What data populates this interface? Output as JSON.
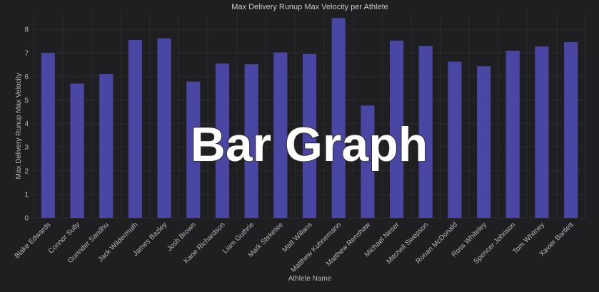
{
  "chart_data": {
    "type": "bar",
    "title": "Max Delivery Runup Max Velocity per Athlete",
    "xlabel": "Athlete Name",
    "ylabel": "Max Delivery Runup Max Velocity",
    "ylim": [
      0,
      8.7
    ],
    "yticks": [
      0,
      1,
      2,
      3,
      4,
      5,
      6,
      7,
      8
    ],
    "grid": true,
    "bar_color": "#4a46a3",
    "categories": [
      "Blake Edwards",
      "Connor Sully",
      "Gurinder Sandhu",
      "Jack Wildermuth",
      "James Bazley",
      "Josh Brown",
      "Kane Richardson",
      "Liam Guthrie",
      "Mark Steketee",
      "Matt Willans",
      "Matthew Kuhnemann",
      "Matthew Renshaw",
      "Michael Neser",
      "Mitchell Swepson",
      "Ronan McDonald",
      "Ross Whiteley",
      "Spencer Johnson",
      "Tom Whitney",
      "Xavier Bartlett"
    ],
    "values": [
      7.0,
      5.7,
      6.1,
      7.55,
      7.62,
      5.78,
      6.55,
      6.52,
      7.02,
      6.95,
      8.48,
      4.77,
      7.52,
      7.29,
      6.63,
      6.43,
      7.09,
      7.27,
      7.46
    ]
  },
  "overlay_text": "Bar Graph"
}
